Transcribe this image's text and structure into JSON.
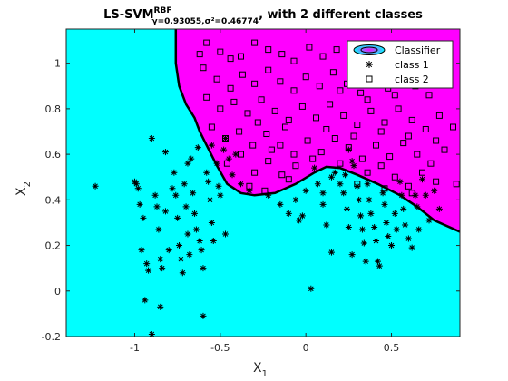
{
  "chart_data": {
    "type": "scatter",
    "title": {
      "main": "LS-SVM",
      "superscript": "RBF",
      "subscript": "γ=0.93055,σ²=0.46774",
      "suffix": ", with 2 different classes"
    },
    "xlabel": {
      "base": "X",
      "sub": "1"
    },
    "ylabel": {
      "base": "X",
      "sub": "2"
    },
    "xlim": [
      -1.4,
      0.9
    ],
    "ylim": [
      -0.2,
      1.15
    ],
    "xticks": [
      -1,
      -0.5,
      0,
      0.5
    ],
    "xtick_labels": [
      "-1",
      "-0.5",
      "0",
      "0.5"
    ],
    "yticks": [
      -0.2,
      0,
      0.2,
      0.4,
      0.6,
      0.8,
      1
    ],
    "ytick_labels": [
      "-0.2",
      "0",
      "0.2",
      "0.4",
      "0.6",
      "0.8",
      "1"
    ],
    "legend": {
      "position": "top-right",
      "entries": [
        "Classifier",
        "class 1",
        "class 2"
      ]
    },
    "colors": {
      "class1_region": "#00FFFF",
      "class2_region": "#FF00FF",
      "boundary": "#000000",
      "marker": "#000000"
    },
    "decision_boundary": [
      [
        -0.76,
        1.15
      ],
      [
        -0.76,
        1.0
      ],
      [
        -0.74,
        0.9
      ],
      [
        -0.7,
        0.82
      ],
      [
        -0.65,
        0.76
      ],
      [
        -0.62,
        0.7
      ],
      [
        -0.58,
        0.64
      ],
      [
        -0.52,
        0.55
      ],
      [
        -0.46,
        0.47
      ],
      [
        -0.38,
        0.43
      ],
      [
        -0.3,
        0.42
      ],
      [
        -0.18,
        0.43
      ],
      [
        -0.06,
        0.47
      ],
      [
        0.05,
        0.52
      ],
      [
        0.12,
        0.545
      ],
      [
        0.2,
        0.54
      ],
      [
        0.3,
        0.51
      ],
      [
        0.42,
        0.47
      ],
      [
        0.55,
        0.42
      ],
      [
        0.65,
        0.37
      ],
      [
        0.75,
        0.31
      ],
      [
        0.9,
        0.26
      ]
    ],
    "series": [
      {
        "name": "class 1",
        "marker": "star",
        "points": [
          [
            -1.23,
            0.46
          ],
          [
            -1.0,
            0.48
          ],
          [
            -0.99,
            0.47
          ],
          [
            -0.98,
            0.45
          ],
          [
            -0.97,
            0.38
          ],
          [
            -0.95,
            0.32
          ],
          [
            -0.96,
            0.18
          ],
          [
            -0.93,
            0.12
          ],
          [
            -0.92,
            0.09
          ],
          [
            -0.94,
            -0.04
          ],
          [
            -0.88,
            0.42
          ],
          [
            -0.87,
            0.37
          ],
          [
            -0.86,
            0.27
          ],
          [
            -0.85,
            0.14
          ],
          [
            -0.84,
            0.1
          ],
          [
            -0.82,
            0.35
          ],
          [
            -0.8,
            0.18
          ],
          [
            -0.78,
            0.45
          ],
          [
            -0.76,
            0.42
          ],
          [
            -0.75,
            0.32
          ],
          [
            -0.74,
            0.2
          ],
          [
            -0.73,
            0.14
          ],
          [
            -0.72,
            0.08
          ],
          [
            -0.71,
            0.47
          ],
          [
            -0.7,
            0.37
          ],
          [
            -0.69,
            0.25
          ],
          [
            -0.68,
            0.16
          ],
          [
            -0.67,
            0.58
          ],
          [
            -0.66,
            0.43
          ],
          [
            -0.65,
            0.34
          ],
          [
            -0.64,
            0.27
          ],
          [
            -0.62,
            0.22
          ],
          [
            -0.61,
            0.18
          ],
          [
            -0.6,
            0.1
          ],
          [
            -0.6,
            -0.11
          ],
          [
            -0.58,
            0.52
          ],
          [
            -0.57,
            0.48
          ],
          [
            -0.56,
            0.4
          ],
          [
            -0.55,
            0.3
          ],
          [
            -0.54,
            0.22
          ],
          [
            -0.52,
            0.56
          ],
          [
            -0.51,
            0.46
          ],
          [
            -0.5,
            0.42
          ],
          [
            -0.48,
            0.62
          ],
          [
            -0.47,
            0.25
          ],
          [
            -0.45,
            0.58
          ],
          [
            -0.43,
            0.51
          ],
          [
            -0.41,
            0.6
          ],
          [
            -0.9,
            0.67
          ],
          [
            -0.82,
            0.61
          ],
          [
            -0.9,
            -0.19
          ],
          [
            -0.85,
            -0.07
          ],
          [
            -0.77,
            0.52
          ],
          [
            -0.69,
            0.56
          ],
          [
            -0.63,
            0.63
          ],
          [
            -0.55,
            0.64
          ],
          [
            -0.47,
            0.67
          ],
          [
            -0.38,
            0.47
          ],
          [
            -0.33,
            0.44
          ],
          [
            -0.22,
            0.42
          ],
          [
            -0.15,
            0.38
          ],
          [
            -0.1,
            0.34
          ],
          [
            -0.06,
            0.4
          ],
          [
            -0.04,
            0.31
          ],
          [
            -0.02,
            0.33
          ],
          [
            0.0,
            0.44
          ],
          [
            0.03,
            0.01
          ],
          [
            0.05,
            0.54
          ],
          [
            0.07,
            0.47
          ],
          [
            0.1,
            0.38
          ],
          [
            0.12,
            0.29
          ],
          [
            0.15,
            0.17
          ],
          [
            0.17,
            0.52
          ],
          [
            0.2,
            0.47
          ],
          [
            0.22,
            0.43
          ],
          [
            0.24,
            0.36
          ],
          [
            0.25,
            0.28
          ],
          [
            0.27,
            0.16
          ],
          [
            0.28,
            0.55
          ],
          [
            0.3,
            0.46
          ],
          [
            0.31,
            0.4
          ],
          [
            0.32,
            0.33
          ],
          [
            0.33,
            0.27
          ],
          [
            0.34,
            0.21
          ],
          [
            0.35,
            0.13
          ],
          [
            0.36,
            0.47
          ],
          [
            0.37,
            0.4
          ],
          [
            0.38,
            0.34
          ],
          [
            0.4,
            0.28
          ],
          [
            0.41,
            0.22
          ],
          [
            0.42,
            0.13
          ],
          [
            0.43,
            0.11
          ],
          [
            0.45,
            0.43
          ],
          [
            0.46,
            0.38
          ],
          [
            0.47,
            0.3
          ],
          [
            0.48,
            0.24
          ],
          [
            0.5,
            0.2
          ],
          [
            0.52,
            0.34
          ],
          [
            0.53,
            0.27
          ],
          [
            0.55,
            0.48
          ],
          [
            0.56,
            0.42
          ],
          [
            0.57,
            0.36
          ],
          [
            0.58,
            0.29
          ],
          [
            0.6,
            0.23
          ],
          [
            0.62,
            0.19
          ],
          [
            0.64,
            0.42
          ],
          [
            0.65,
            0.37
          ],
          [
            0.66,
            0.27
          ],
          [
            0.68,
            0.49
          ],
          [
            0.7,
            0.42
          ],
          [
            0.72,
            0.31
          ],
          [
            0.75,
            0.44
          ],
          [
            0.78,
            0.36
          ],
          [
            0.27,
            0.57
          ],
          [
            0.25,
            0.62
          ],
          [
            0.23,
            0.51
          ],
          [
            0.15,
            0.5
          ],
          [
            0.1,
            0.43
          ]
        ]
      },
      {
        "name": "class 2",
        "marker": "square",
        "points": [
          [
            -0.58,
            1.09
          ],
          [
            -0.62,
            1.04
          ],
          [
            -0.5,
            1.05
          ],
          [
            -0.44,
            1.02
          ],
          [
            -0.38,
            1.03
          ],
          [
            -0.3,
            1.09
          ],
          [
            -0.22,
            1.06
          ],
          [
            -0.14,
            1.04
          ],
          [
            -0.07,
            1.01
          ],
          [
            0.02,
            1.07
          ],
          [
            0.1,
            1.03
          ],
          [
            0.18,
            1.06
          ],
          [
            0.26,
            1.01
          ],
          [
            0.34,
            1.05
          ],
          [
            0.42,
            1.0
          ],
          [
            0.5,
            1.03
          ],
          [
            0.58,
            1.07
          ],
          [
            0.66,
            1.02
          ],
          [
            0.74,
            1.05
          ],
          [
            0.82,
            1.0
          ],
          [
            -0.6,
            0.98
          ],
          [
            -0.52,
            0.93
          ],
          [
            -0.44,
            0.89
          ],
          [
            -0.37,
            0.95
          ],
          [
            -0.3,
            0.91
          ],
          [
            -0.22,
            0.97
          ],
          [
            -0.15,
            0.92
          ],
          [
            -0.07,
            0.88
          ],
          [
            0.0,
            0.94
          ],
          [
            0.08,
            0.9
          ],
          [
            0.16,
            0.96
          ],
          [
            0.24,
            0.91
          ],
          [
            0.32,
            0.87
          ],
          [
            0.4,
            0.93
          ],
          [
            0.48,
            0.89
          ],
          [
            0.56,
            0.95
          ],
          [
            0.64,
            0.9
          ],
          [
            0.72,
            0.86
          ],
          [
            0.8,
            0.92
          ],
          [
            -0.58,
            0.85
          ],
          [
            -0.5,
            0.8
          ],
          [
            -0.42,
            0.83
          ],
          [
            -0.34,
            0.78
          ],
          [
            -0.26,
            0.84
          ],
          [
            -0.18,
            0.79
          ],
          [
            -0.1,
            0.75
          ],
          [
            -0.02,
            0.81
          ],
          [
            0.06,
            0.76
          ],
          [
            0.14,
            0.82
          ],
          [
            0.22,
            0.77
          ],
          [
            0.3,
            0.73
          ],
          [
            0.38,
            0.79
          ],
          [
            0.46,
            0.74
          ],
          [
            0.54,
            0.8
          ],
          [
            0.62,
            0.75
          ],
          [
            0.7,
            0.71
          ],
          [
            0.78,
            0.77
          ],
          [
            0.86,
            0.72
          ],
          [
            -0.55,
            0.72
          ],
          [
            -0.47,
            0.67
          ],
          [
            -0.39,
            0.7
          ],
          [
            -0.31,
            0.64
          ],
          [
            -0.23,
            0.69
          ],
          [
            -0.15,
            0.64
          ],
          [
            -0.07,
            0.6
          ],
          [
            0.01,
            0.66
          ],
          [
            0.09,
            0.61
          ],
          [
            0.17,
            0.67
          ],
          [
            0.25,
            0.63
          ],
          [
            0.33,
            0.58
          ],
          [
            0.41,
            0.64
          ],
          [
            0.49,
            0.59
          ],
          [
            0.57,
            0.65
          ],
          [
            0.65,
            0.6
          ],
          [
            0.73,
            0.56
          ],
          [
            0.81,
            0.62
          ],
          [
            0.88,
            0.47
          ],
          [
            -0.46,
            0.56
          ],
          [
            -0.38,
            0.6
          ],
          [
            -0.3,
            0.52
          ],
          [
            -0.22,
            0.57
          ],
          [
            -0.14,
            0.51
          ],
          [
            -0.06,
            0.55
          ],
          [
            0.04,
            0.58
          ],
          [
            0.36,
            0.52
          ],
          [
            0.44,
            0.55
          ],
          [
            0.52,
            0.5
          ],
          [
            0.6,
            0.46
          ],
          [
            0.68,
            0.52
          ],
          [
            0.76,
            0.48
          ],
          [
            -0.33,
            0.46
          ],
          [
            -0.24,
            0.44
          ],
          [
            -0.1,
            0.49
          ],
          [
            0.2,
            0.56
          ],
          [
            0.3,
            0.47
          ],
          [
            0.46,
            0.45
          ],
          [
            0.62,
            0.43
          ],
          [
            -0.2,
            0.62
          ],
          [
            -0.12,
            0.72
          ],
          [
            0.12,
            0.71
          ],
          [
            0.28,
            0.68
          ],
          [
            0.44,
            0.7
          ],
          [
            0.6,
            0.68
          ],
          [
            0.76,
            0.66
          ],
          [
            -0.28,
            0.74
          ],
          [
            0.52,
            0.86
          ],
          [
            0.36,
            0.84
          ],
          [
            0.2,
            0.88
          ]
        ]
      }
    ]
  }
}
